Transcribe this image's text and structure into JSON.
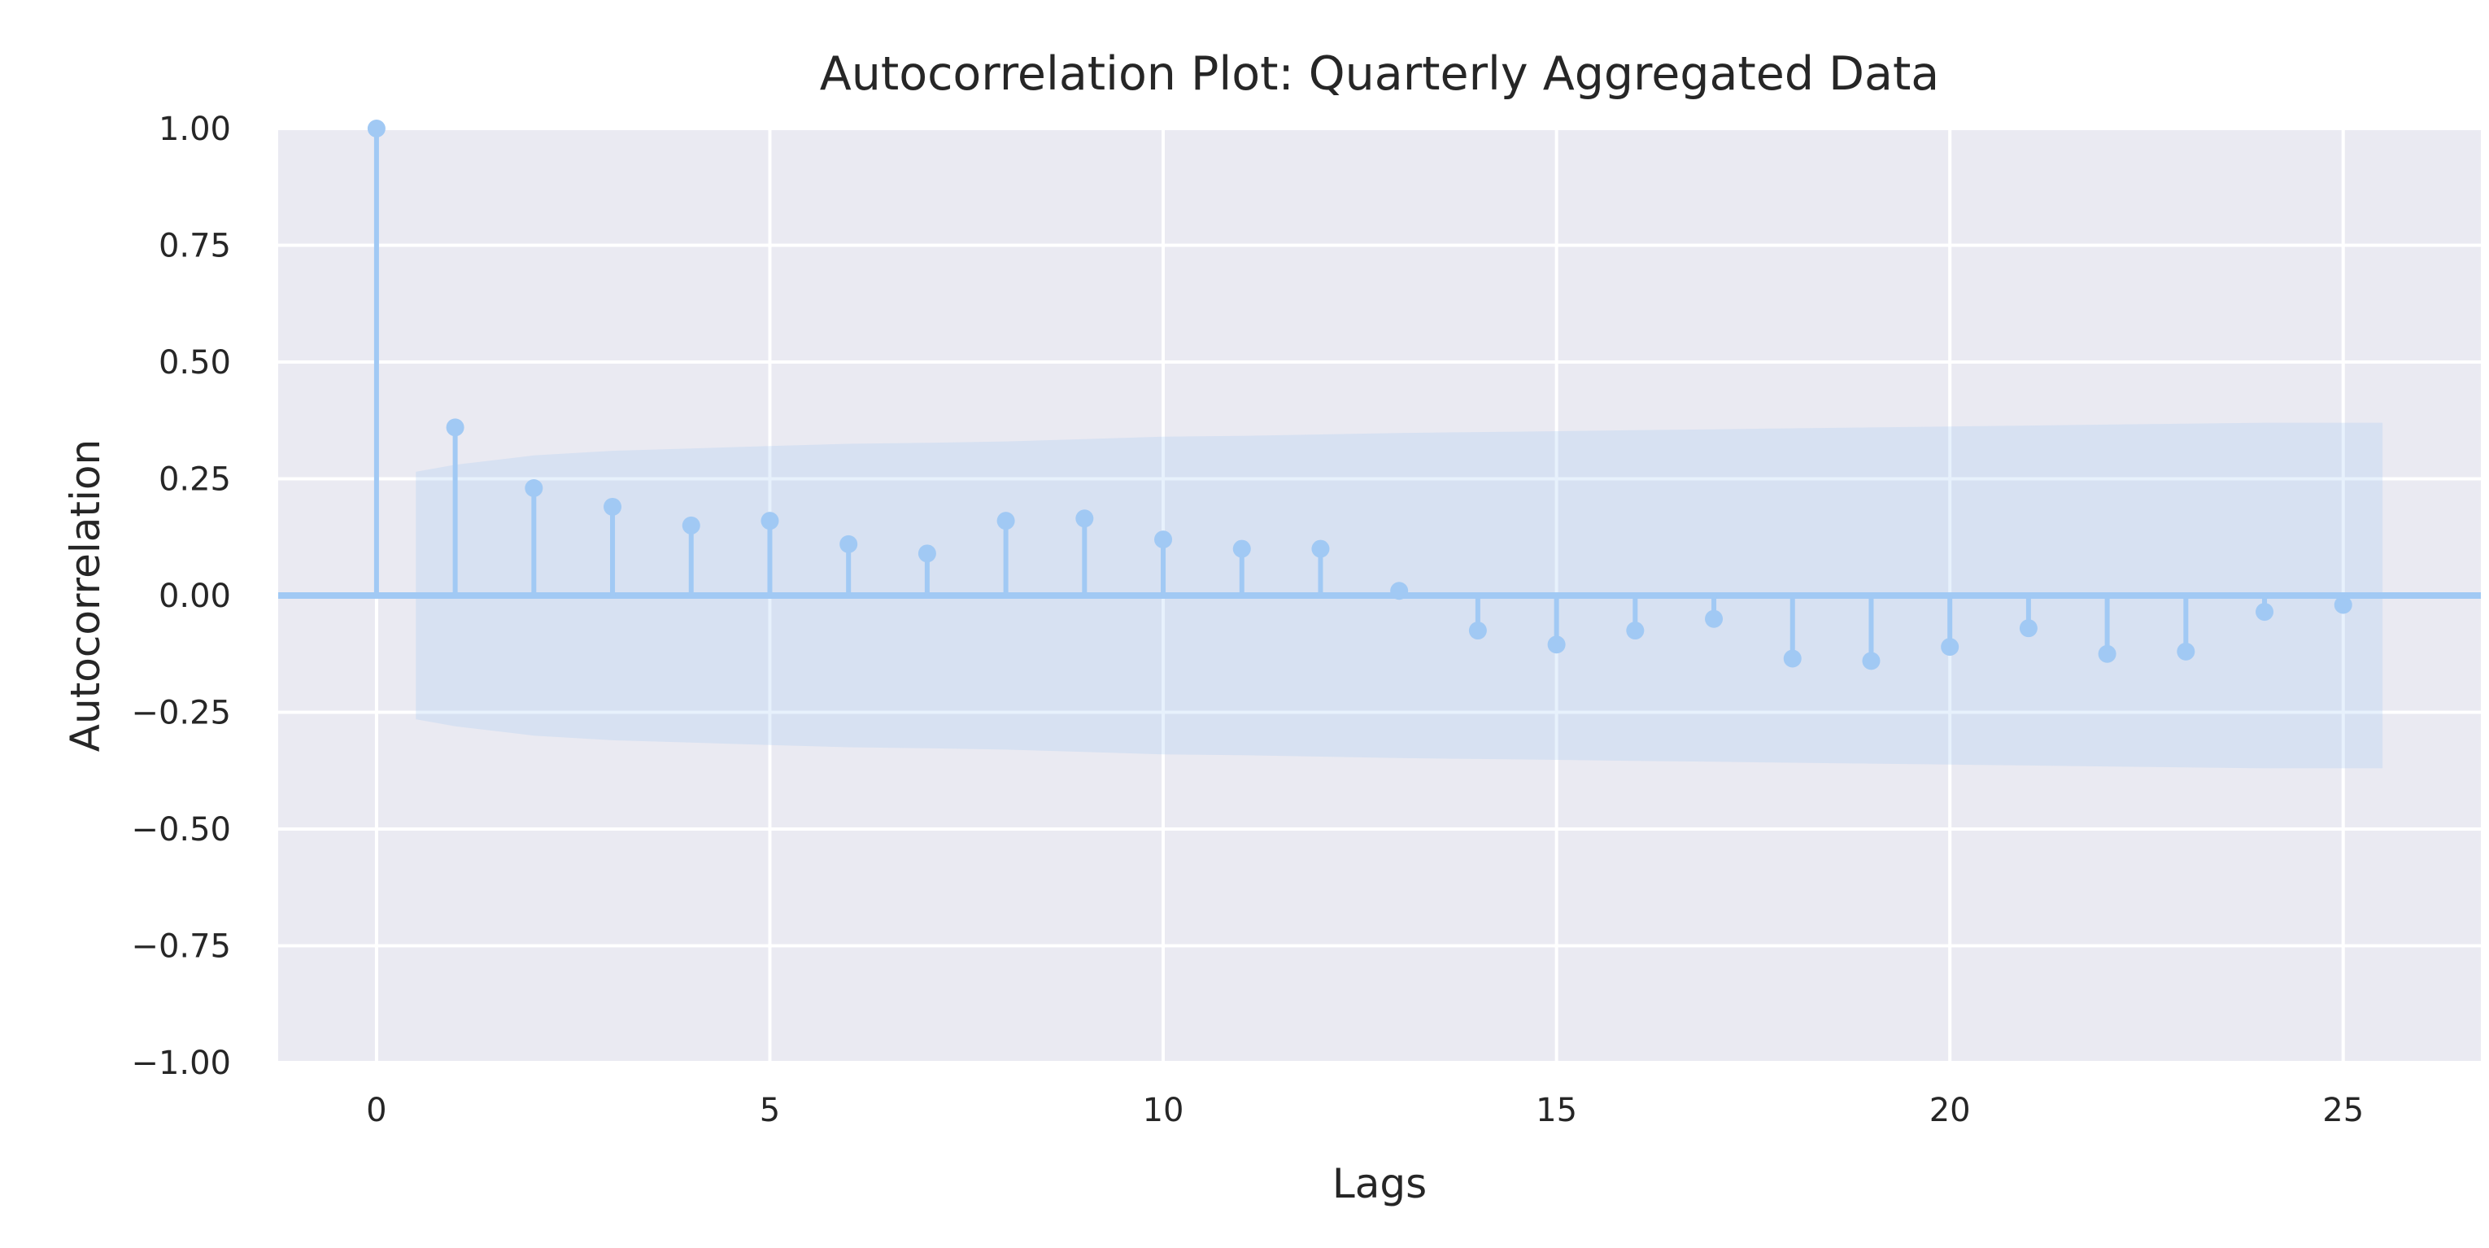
{
  "chart_data": {
    "type": "stem",
    "title": "Autocorrelation Plot: Quarterly Aggregated Data",
    "xlabel": "Lags",
    "ylabel": "Autocorrelation",
    "xlim": [
      -1.25,
      26.75
    ],
    "ylim": [
      -1.0,
      1.0
    ],
    "x_ticks": [
      0,
      5,
      10,
      15,
      20,
      25
    ],
    "x_tick_labels": [
      "0",
      "5",
      "10",
      "15",
      "20",
      "25"
    ],
    "y_ticks": [
      1.0,
      0.75,
      0.5,
      0.25,
      0.0,
      -0.25,
      -0.5,
      -0.75,
      -1.0
    ],
    "y_tick_labels": [
      "1.00",
      "0.75",
      "0.50",
      "0.25",
      "0.00",
      "−0.25",
      "−0.50",
      "−0.75",
      "−1.00"
    ],
    "grid": true,
    "series": [
      {
        "lags": [
          0,
          1,
          2,
          3,
          4,
          5,
          6,
          7,
          8,
          9,
          10,
          11,
          12,
          13,
          14,
          15,
          16,
          17,
          18,
          19,
          20,
          21,
          22,
          23,
          24,
          25
        ],
        "values": [
          1.0,
          0.36,
          0.23,
          0.19,
          0.15,
          0.16,
          0.11,
          0.09,
          0.16,
          0.165,
          0.12,
          0.1,
          0.1,
          0.01,
          -0.075,
          -0.105,
          -0.075,
          -0.05,
          -0.135,
          -0.14,
          -0.11,
          -0.07,
          -0.125,
          -0.12,
          -0.035,
          -0.02
        ]
      }
    ],
    "confidence_band": {
      "lags": [
        0.5,
        1,
        2,
        3,
        4,
        5,
        6,
        7,
        8,
        9,
        10,
        11,
        12,
        13,
        14,
        15,
        16,
        17,
        18,
        19,
        20,
        21,
        22,
        23,
        24,
        25,
        25.5
      ],
      "upper": [
        0.265,
        0.28,
        0.3,
        0.31,
        0.315,
        0.32,
        0.325,
        0.327,
        0.33,
        0.335,
        0.34,
        0.342,
        0.345,
        0.348,
        0.35,
        0.352,
        0.354,
        0.356,
        0.358,
        0.36,
        0.362,
        0.364,
        0.366,
        0.368,
        0.37,
        0.37,
        0.37
      ],
      "lower": [
        -0.265,
        -0.28,
        -0.3,
        -0.31,
        -0.315,
        -0.32,
        -0.325,
        -0.327,
        -0.33,
        -0.335,
        -0.34,
        -0.342,
        -0.345,
        -0.348,
        -0.35,
        -0.352,
        -0.354,
        -0.356,
        -0.358,
        -0.36,
        -0.362,
        -0.364,
        -0.366,
        -0.368,
        -0.37,
        -0.37,
        -0.37
      ]
    },
    "colors": {
      "plot_background": "#eaeaf2",
      "grid": "#ffffff",
      "stem": "#a1c9f4",
      "confidence_band": "#a1c9f4",
      "text": "#262626"
    }
  }
}
